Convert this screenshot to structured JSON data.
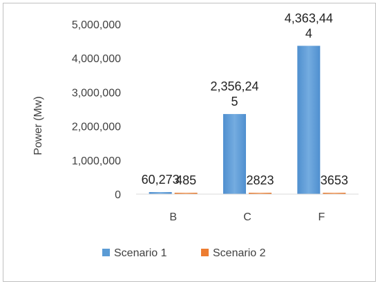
{
  "chart_data": {
    "type": "bar",
    "title": "",
    "xlabel": "",
    "ylabel": "Power (Mw)",
    "categories": [
      "B",
      "C",
      "F"
    ],
    "ylim": [
      0,
      5000000
    ],
    "yticks": [
      "0",
      "1,000,000",
      "2,000,000",
      "3,000,000",
      "4,000,000",
      "5,000,000"
    ],
    "grid": false,
    "legend": "bottom",
    "series": [
      {
        "name": "Scenario 1",
        "color": "#5b9bd5",
        "values": [
          60273,
          2356245,
          4363444
        ],
        "labels": [
          [
            "60,273"
          ],
          [
            "2,356,24",
            "5"
          ],
          [
            "4,363,44",
            "4"
          ]
        ]
      },
      {
        "name": "Scenario 2",
        "color": "#ed7d31",
        "values": [
          485,
          2823,
          3653
        ],
        "labels": [
          [
            "485"
          ],
          [
            "2823"
          ],
          [
            "3653"
          ]
        ]
      }
    ]
  }
}
